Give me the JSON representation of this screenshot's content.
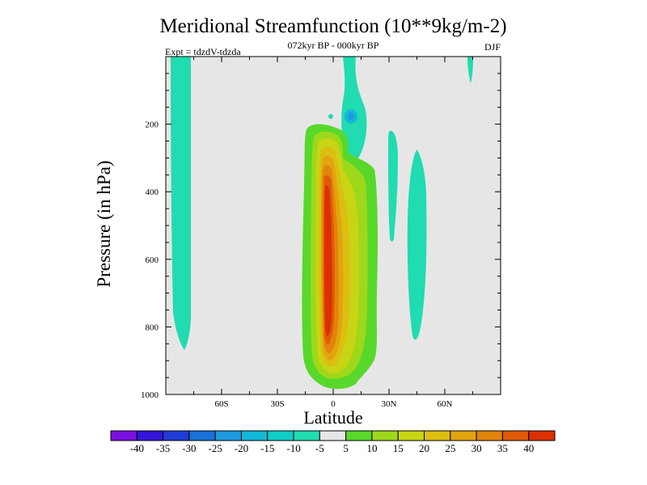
{
  "chart_data": {
    "type": "contour",
    "title": "Meridional Streamfunction (10**9kg/m-2)",
    "subtitle": "072kyr BP - 000kyr BP",
    "experiment": "Expt = tdzdV-tdzda",
    "season": "DJF",
    "xlabel": "Latitude",
    "ylabel": "Pressure (in hPa)",
    "xlim": [
      -90,
      90
    ],
    "ylim": [
      1000,
      0
    ],
    "x_ticks": [
      {
        "value": -60,
        "label": "60S"
      },
      {
        "value": -30,
        "label": "30S"
      },
      {
        "value": 0,
        "label": "0"
      },
      {
        "value": 30,
        "label": "30N"
      },
      {
        "value": 60,
        "label": "60N"
      }
    ],
    "y_ticks": [
      {
        "value": 200,
        "label": "200"
      },
      {
        "value": 400,
        "label": "400"
      },
      {
        "value": 600,
        "label": "600"
      },
      {
        "value": 800,
        "label": "800"
      },
      {
        "value": 1000,
        "label": "1000"
      }
    ],
    "background_color": "#e6e6e6",
    "colorbar": {
      "levels": [
        "-40",
        "-35",
        "-30",
        "-25",
        "-20",
        "-15",
        "-10",
        "-5",
        "5",
        "10",
        "15",
        "20",
        "25",
        "30",
        "35",
        "40"
      ],
      "colors": [
        "#7b10e0",
        "#3316d8",
        "#1f3cd6",
        "#1a70d8",
        "#1e9be0",
        "#14b8d8",
        "#10cec8",
        "#20dcb0",
        "#e6e6e6",
        "#58d82a",
        "#9ed81a",
        "#c8d414",
        "#dcbe10",
        "#e2a40e",
        "#e2840c",
        "#e05a08",
        "#dc3000"
      ]
    },
    "features": [
      {
        "name": "southern-negative-column",
        "value": -7,
        "lat_range": [
          -83,
          -75
        ],
        "p_range": [
          0,
          870
        ]
      },
      {
        "name": "upper-negative-cell",
        "value": -18,
        "center_lat": 9,
        "center_p": 178
      },
      {
        "name": "equatorial-positive-cell",
        "value": 42,
        "center_lat": 0,
        "center_p": 600,
        "lat_range": [
          -14,
          22
        ],
        "p_range": [
          200,
          985
        ]
      },
      {
        "name": "northern-negative-column-30N",
        "value": -7,
        "lat_range": [
          30,
          34
        ],
        "p_range": [
          215,
          560
        ]
      },
      {
        "name": "northern-negative-column-45N",
        "value": -7,
        "lat_range": [
          42,
          50
        ],
        "p_range": [
          285,
          845
        ]
      },
      {
        "name": "polar-negative-tip",
        "value": -7,
        "lat_range": [
          76,
          78
        ],
        "p_range": [
          0,
          110
        ]
      }
    ]
  }
}
